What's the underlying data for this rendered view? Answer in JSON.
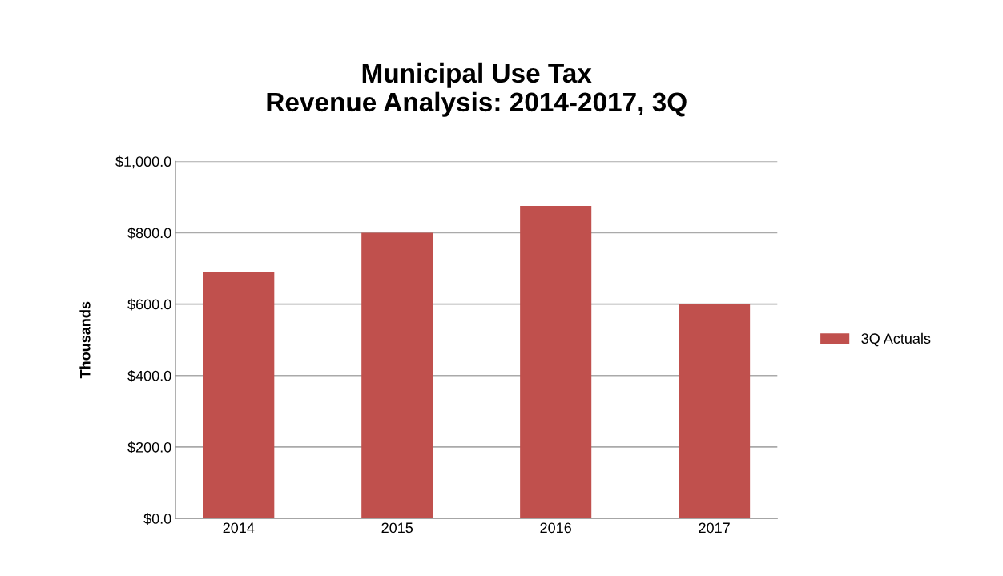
{
  "chart_data": {
    "type": "bar",
    "title": "Municipal Use Tax\nRevenue Analysis: 2014-2017, 3Q",
    "ylabel": "Thousands",
    "categories": [
      "2014",
      "2015",
      "2016",
      "2017"
    ],
    "series": [
      {
        "name": "3Q Actuals",
        "color": "#c0504d",
        "values": [
          690,
          800,
          875,
          600
        ]
      }
    ],
    "ylim": [
      0,
      1000
    ],
    "yticks": [
      {
        "value": 0,
        "label": "$0.0"
      },
      {
        "value": 200,
        "label": "$200.0"
      },
      {
        "value": 400,
        "label": "$400.0"
      },
      {
        "value": 600,
        "label": "$600.0"
      },
      {
        "value": 800,
        "label": "$800.0"
      },
      {
        "value": 1000,
        "label": "$1,000.0"
      }
    ],
    "grid": "y",
    "legend": "right"
  }
}
